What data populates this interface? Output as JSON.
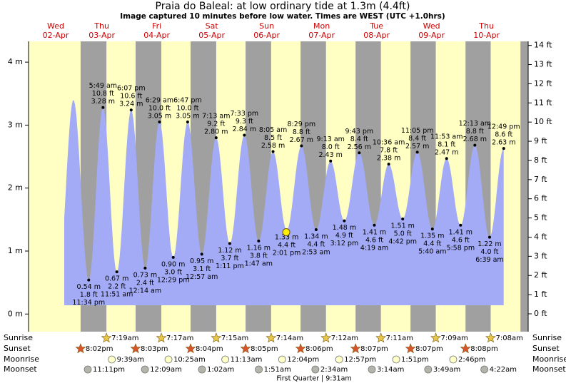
{
  "chart_data": {
    "type": "area",
    "title": "Praia do Baleal: at low  ordinary tide at 1.3m (4.4ft)",
    "subtitle": "Image captured 10 minutes before low water. Times are WEST (UTC +1.0hrs)",
    "days": [
      {
        "weekday": "Wed",
        "date": "02-Apr"
      },
      {
        "weekday": "Thu",
        "date": "03-Apr"
      },
      {
        "weekday": "Fri",
        "date": "04-Apr"
      },
      {
        "weekday": "Sat",
        "date": "05-Apr"
      },
      {
        "weekday": "Sun",
        "date": "06-Apr"
      },
      {
        "weekday": "Mon",
        "date": "07-Apr"
      },
      {
        "weekday": "Tue",
        "date": "08-Apr"
      },
      {
        "weekday": "Wed",
        "date": "09-Apr"
      },
      {
        "weekday": "Thu",
        "date": "10-Apr"
      }
    ],
    "xlim": [
      -2.7,
      215.5
    ],
    "ylim": [
      -0.28,
      4.33
    ],
    "yticks": [
      {
        "value": 0,
        "label": "0 m"
      },
      {
        "value": 1,
        "label": "1 m"
      },
      {
        "value": 2,
        "label": "2 m"
      },
      {
        "value": 3,
        "label": "3 m"
      },
      {
        "value": 4,
        "label": "4 m"
      }
    ],
    "y2lim": [
      -0.93,
      14.21
    ],
    "y2ticks": [
      {
        "value": 0,
        "label": "0 ft"
      },
      {
        "value": 1,
        "label": "1 ft"
      },
      {
        "value": 2,
        "label": "2 ft"
      },
      {
        "value": 3,
        "label": "3 ft"
      },
      {
        "value": 4,
        "label": "4 ft"
      },
      {
        "value": 5,
        "label": "5 ft"
      },
      {
        "value": 6,
        "label": "6 ft"
      },
      {
        "value": 7,
        "label": "7 ft"
      },
      {
        "value": 8,
        "label": "8 ft"
      },
      {
        "value": 9,
        "label": "9 ft"
      },
      {
        "value": 10,
        "label": "10 ft"
      },
      {
        "value": 11,
        "label": "11 ft"
      },
      {
        "value": 12,
        "label": "12 ft"
      },
      {
        "value": 13,
        "label": "13 ft"
      },
      {
        "value": 14,
        "label": "14 ft"
      }
    ],
    "day_color": "#ffffc4",
    "night_color": "#a0a0a0",
    "tides": {
      "color": "#a3abf7",
      "x": [
        16.9,
        23.57,
        29.82,
        35.85,
        42.12,
        48.23,
        54.48,
        60.48,
        66.78,
        72.95,
        79.22,
        85.18,
        91.55,
        97.78,
        104.08,
        110.02,
        116.48,
        122.88,
        129.22,
        135.2,
        141.72,
        148.32,
        154.6,
        160.7,
        167.08,
        173.67,
        179.88,
        185.97,
        192.22,
        198.65,
        204.82
      ],
      "values": [
        3.4,
        0.54,
        3.28,
        0.67,
        3.24,
        0.73,
        3.05,
        0.9,
        3.05,
        0.95,
        2.8,
        1.12,
        2.84,
        1.16,
        2.58,
        1.33,
        2.67,
        1.34,
        2.43,
        1.48,
        2.56,
        1.41,
        2.38,
        1.51,
        2.57,
        1.35,
        2.47,
        1.41,
        2.68,
        1.22,
        2.63
      ],
      "value_labels": [
        null,
        "0.54 m",
        "3.28 m",
        "0.67 m",
        "3.24 m",
        "0.73 m",
        "3.05 m",
        "0.90 m",
        "3.05 m",
        "0.95 m",
        "2.80 m",
        "1.12 m",
        "2.84 m",
        "1.16 m",
        "2.58 m",
        "1.33 m",
        "2.67 m",
        "1.34 m",
        "2.43 m",
        "1.48 m",
        "2.56 m",
        "1.41 m",
        "2.38 m",
        "1.51 m",
        "2.57 m",
        "1.35 m",
        "2.47 m",
        "1.41 m",
        "2.68 m",
        "1.22 m",
        "2.63 m"
      ],
      "ft_labels": [
        null,
        "1.8 ft",
        "10.8 ft",
        "2.2 ft",
        "10.6 ft",
        "2.4 ft",
        "10.0 ft",
        "3.0 ft",
        "10.0 ft",
        "3.1 ft",
        "9.2 ft",
        "3.7 ft",
        "9.3 ft",
        "3.8 ft",
        "8.5 ft",
        "4.4 ft",
        "8.8 ft",
        "4.4 ft",
        "8.0 ft",
        "4.9 ft",
        "8.4 ft",
        "4.6 ft",
        "7.8 ft",
        "5.0 ft",
        "8.4 ft",
        "4.4 ft",
        "8.1 ft",
        "4.6 ft",
        "8.8 ft",
        "4.0 ft",
        "8.6 ft"
      ],
      "times": [
        null,
        "11:34 pm",
        "5:49 am",
        "11:51 am",
        "6:07 pm",
        "12:14 am",
        "6:29 am",
        "12:29 pm",
        "6:47 pm",
        "12:57 am",
        "7:13 am",
        "1:11 pm",
        "7:33 pm",
        "1:47 am",
        "8:05 am",
        "2:01 pm",
        "8:29 pm",
        "2:53 am",
        "9:13 am",
        "3:12 pm",
        "9:43 pm",
        "4:19 am",
        "10:36 am",
        "4:42 pm",
        "11:05 pm",
        "5:40 am",
        "11:53 am",
        "5:58 pm",
        "12:13 am",
        "6:39 am",
        "12:49 pm"
      ]
    },
    "now": {
      "x": 109.85,
      "value": 1.3,
      "color": "#ffee00"
    },
    "rows": [
      {
        "name": "Sunrise",
        "icon": "star",
        "color": "#e8c84a",
        "times": [
          null,
          "7:19am",
          "7:17am",
          "7:15am",
          "7:14am",
          "7:12am",
          "7:11am",
          "7:09am",
          "7:08am"
        ]
      },
      {
        "name": "Sunset",
        "icon": "star",
        "color": "#d9542a",
        "times": [
          "8:02pm",
          "8:03pm",
          "8:04pm",
          "8:05pm",
          "8:06pm",
          "8:07pm",
          "8:07pm",
          "8:08pm",
          null
        ]
      },
      {
        "name": "Moonrise",
        "icon": "moon",
        "color": "#ffffc8",
        "times": [
          null,
          "9:39am",
          "10:25am",
          "11:13am",
          "12:04pm",
          "12:57pm",
          "1:51pm",
          "2:46pm",
          null
        ]
      },
      {
        "name": "Moonset",
        "icon": "moon",
        "color": "#b4b4aa",
        "times": [
          "11:11pm",
          null,
          "12:09am",
          "1:02am",
          "1:51am",
          "2:34am",
          "3:14am",
          "3:49am",
          "4:22am"
        ]
      }
    ],
    "moon_phase": "First Quarter | 9:31am"
  }
}
